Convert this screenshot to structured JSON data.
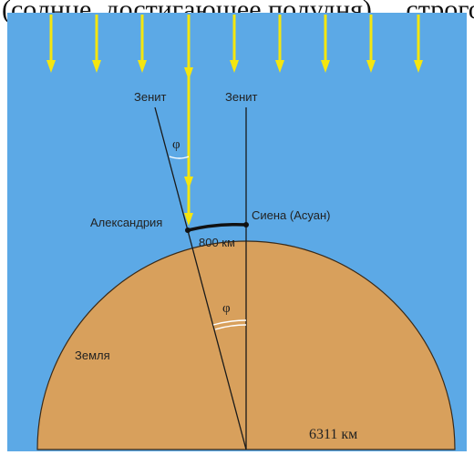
{
  "header_fragment": "(солнце, достигающее полудня) ... строго в перепендикулярном ...",
  "labels": {
    "zenith_left": "Зенит",
    "zenith_right": "Зенит",
    "phi_top": "φ",
    "phi_center": "φ",
    "alexandria": "Александрия",
    "syene": "Сиена (Асуан)",
    "arc_distance": "800 км",
    "earth": "Земля",
    "radius": "6311 км"
  },
  "colors": {
    "sky": "#5ca9e6",
    "earth": "#d8a05c",
    "sun_ray": "#f5e60f",
    "line": "#1a1a1a",
    "white_frame": "#ffffff"
  }
}
